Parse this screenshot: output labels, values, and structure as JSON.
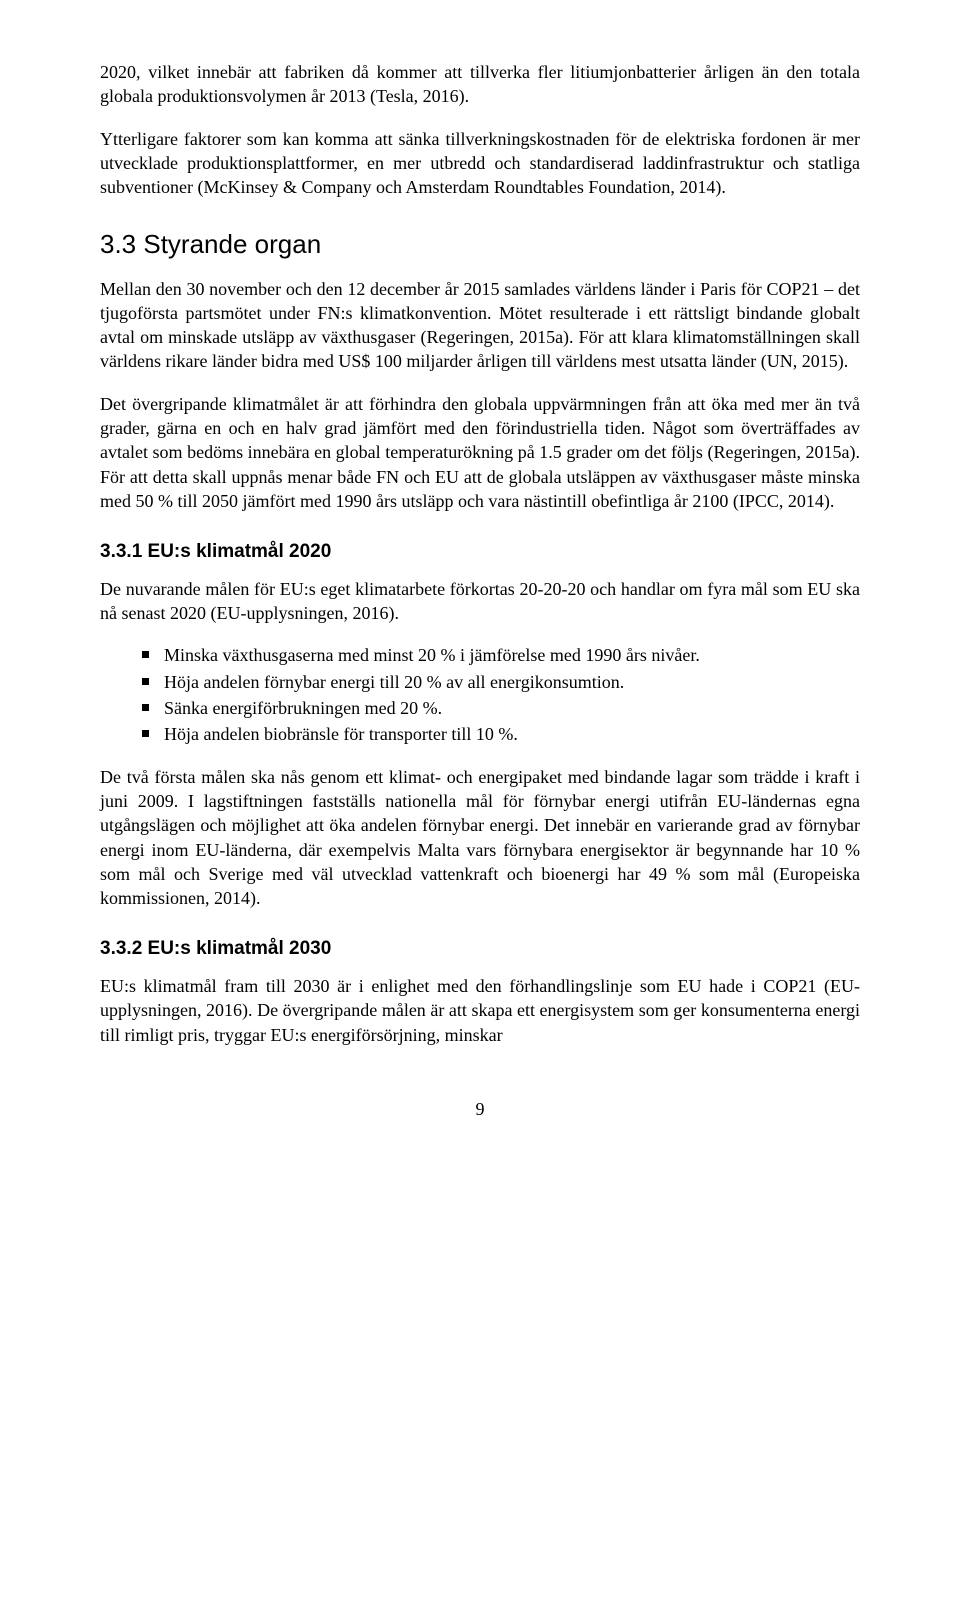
{
  "para_top": "2020, vilket innebär att fabriken då kommer att tillverka fler litiumjonbatterier årligen än den totala globala produktionsvolymen år 2013 (Tesla, 2016).",
  "para_top2": "Ytterligare faktorer som kan komma att sänka tillverkningskostnaden för de elektriska fordonen är mer utvecklade produktionsplattformer, en mer utbredd och standardiserad laddinfrastruktur och statliga subventioner (McKinsey & Company och Amsterdam Roundtables Foundation, 2014).",
  "h2_33": "3.3  Styrande organ",
  "para_33_1": "Mellan den 30 november och den 12 december år 2015 samlades världens länder i Paris för COP21 – det tjugoförsta partsmötet under FN:s klimatkonvention. Mötet resulterade i ett rättsligt bindande globalt avtal om minskade utsläpp av växthusgaser (Regeringen, 2015a). För att klara klimatomställningen skall världens rikare länder bidra med US$ 100 miljarder årligen till världens mest utsatta länder (UN, 2015).",
  "para_33_2": "Det övergripande klimatmålet är att förhindra den globala uppvärmningen från att öka med mer än två grader, gärna en och en halv grad jämfört med den förindustriella tiden. Något som överträffades av avtalet som bedöms innebära en global temperaturökning på 1.5 grader om det följs (Regeringen, 2015a). För att detta skall uppnås menar både FN och EU att de globala utsläppen av växthusgaser måste minska med 50 % till 2050 jämfört med 1990 års utsläpp och vara nästintill obefintliga år 2100 (IPCC, 2014).",
  "h3_331": "3.3.1  EU:s klimatmål 2020",
  "para_331_1": "De nuvarande målen för EU:s eget klimatarbete förkortas 20-20-20 och handlar om fyra mål som EU ska nå senast 2020 (EU-upplysningen, 2016).",
  "bullets_331": [
    "Minska växthusgaserna med minst 20 % i jämförelse med 1990 års nivåer.",
    "Höja andelen förnybar energi till 20 % av all energikonsumtion.",
    "Sänka energiförbrukningen med 20 %.",
    "Höja andelen biobränsle för transporter till 10 %."
  ],
  "para_331_2": "De två första målen ska nås genom ett klimat- och energipaket med bindande lagar som trädde i kraft i juni 2009. I lagstiftningen fastställs nationella mål för förnybar energi utifrån EU-ländernas egna utgångslägen och möjlighet att öka andelen förnybar energi. Det innebär en varierande grad av förnybar energi inom EU-länderna, där exempelvis Malta vars förnybara energisektor är begynnande har 10 % som mål och Sverige med väl utvecklad vattenkraft och bioenergi har 49 % som mål (Europeiska kommissionen, 2014).",
  "h3_332": "3.3.2  EU:s klimatmål 2030",
  "para_332_1": "EU:s klimatmål fram till 2030 är i enlighet med den förhandlingslinje som EU hade i COP21 (EU-upplysningen, 2016). De övergripande målen är att skapa ett energisystem som ger konsumenterna energi till rimligt pris, tryggar EU:s energiförsörjning, minskar",
  "page_number": "9"
}
